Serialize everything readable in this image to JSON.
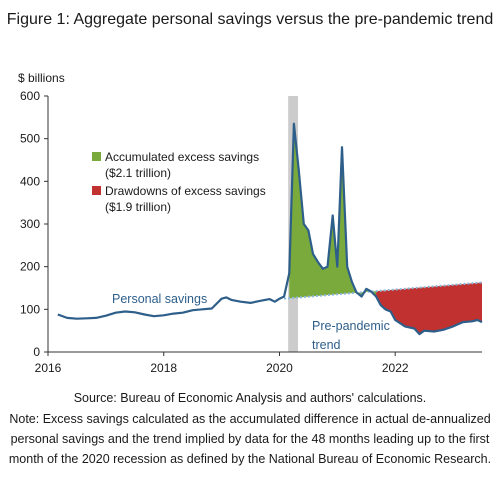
{
  "title": "Figure 1: Aggregate personal savings versus the pre-pandemic trend",
  "source": "Source: Bureau of Economic Analysis and authors' calculations.",
  "note": "Note: Excess savings calculated as the accumulated difference in actual de-annualized personal savings and the trend implied by data for the 48 months leading up to the first month of the 2020 recession as defined by the National Bureau of Economic Research.",
  "colors": {
    "line": "#2e5f8a",
    "trend": "#8db8d8",
    "excess": "#7aa93c",
    "drawdown": "#c0312f",
    "recession": "#cccccc",
    "axis": "#333333"
  },
  "chart_data": {
    "type": "line",
    "ylabel": "$ billions",
    "ylim": [
      0,
      600
    ],
    "yticks": [
      0,
      100,
      200,
      300,
      400,
      500,
      600
    ],
    "xlim": [
      2016,
      2023.5
    ],
    "xticks": [
      2016,
      2018,
      2020,
      2022
    ],
    "grid": false,
    "recession_band": [
      2020.15,
      2020.32
    ],
    "legend": {
      "placement": "top-left",
      "entries": [
        {
          "label": "Accumulated excess savings",
          "sublabel": "($2.1 trillion)",
          "color": "excess"
        },
        {
          "label": "Drawdowns of excess savings",
          "sublabel": "($1.9 trillion)",
          "color": "drawdown"
        }
      ]
    },
    "annotations": [
      {
        "text": "Personal savings",
        "series": "personal_savings"
      },
      {
        "text": "Pre-pandemic",
        "series": "trend"
      },
      {
        "text": "trend",
        "series": "trend"
      }
    ],
    "series": [
      {
        "name": "Personal savings",
        "x": [
          2016.17,
          2016.33,
          2016.5,
          2016.67,
          2016.83,
          2017.0,
          2017.17,
          2017.33,
          2017.5,
          2017.67,
          2017.83,
          2018.0,
          2018.17,
          2018.33,
          2018.5,
          2018.67,
          2018.83,
          2019.0,
          2019.08,
          2019.17,
          2019.33,
          2019.5,
          2019.67,
          2019.83,
          2019.92,
          2020.0,
          2020.08,
          2020.17,
          2020.25,
          2020.33,
          2020.42,
          2020.5,
          2020.58,
          2020.67,
          2020.75,
          2020.83,
          2020.92,
          2021.0,
          2021.08,
          2021.17,
          2021.25,
          2021.33,
          2021.42,
          2021.5,
          2021.58,
          2021.67,
          2021.75,
          2021.83,
          2021.92,
          2022.0,
          2022.17,
          2022.33,
          2022.42,
          2022.5,
          2022.67,
          2022.83,
          2023.0,
          2023.17,
          2023.33,
          2023.42,
          2023.5
        ],
        "values": [
          88,
          80,
          78,
          79,
          80,
          85,
          92,
          95,
          93,
          88,
          84,
          86,
          90,
          92,
          98,
          100,
          102,
          125,
          128,
          122,
          118,
          115,
          120,
          124,
          118,
          125,
          130,
          185,
          535,
          430,
          300,
          285,
          230,
          210,
          195,
          200,
          320,
          200,
          480,
          200,
          165,
          140,
          130,
          148,
          142,
          130,
          110,
          100,
          95,
          75,
          60,
          55,
          42,
          50,
          48,
          52,
          60,
          70,
          72,
          75,
          70
        ]
      },
      {
        "name": "Pre-pandemic trend",
        "x": [
          2020.08,
          2023.5
        ],
        "values": [
          125,
          163
        ]
      }
    ],
    "excess_period": [
      2020.17,
      2021.67
    ],
    "drawdown_period": [
      2021.67,
      2023.5
    ]
  }
}
